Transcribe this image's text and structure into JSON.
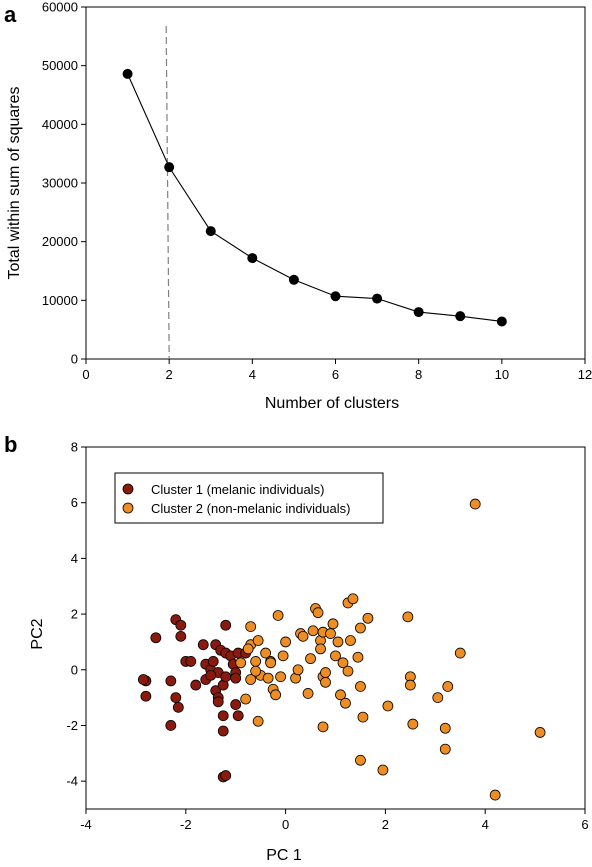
{
  "chart_data": [
    {
      "type": "line",
      "panel_label": "a",
      "xlabel": "Number of clusters",
      "ylabel": "Total within sum of squares",
      "xlim": [
        0,
        12
      ],
      "ylim": [
        0,
        60000
      ],
      "xticks": [
        0,
        2,
        4,
        6,
        8,
        10,
        12
      ],
      "yticks": [
        0,
        10000,
        20000,
        30000,
        40000,
        50000,
        60000
      ],
      "x": [
        1,
        2,
        3,
        4,
        5,
        6,
        7,
        8,
        9,
        10
      ],
      "y": [
        48600,
        32700,
        21800,
        17200,
        13500,
        10700,
        10300,
        8000,
        7300,
        6400
      ],
      "reference_line": {
        "orientation": "vertical",
        "x": 2,
        "style": "dashed",
        "color": "#808080"
      },
      "grid": false,
      "series_color": "#000000"
    },
    {
      "type": "scatter",
      "panel_label": "b",
      "xlabel": "PC 1",
      "ylabel": "PC2",
      "xlim": [
        -4,
        6
      ],
      "ylim": [
        -5,
        8
      ],
      "xticks": [
        -4,
        -2,
        0,
        2,
        4,
        6
      ],
      "yticks": [
        -4,
        -2,
        0,
        2,
        4,
        6,
        8
      ],
      "legend_position": "top-left",
      "grid": false,
      "series": [
        {
          "name": "Cluster 1 (melanic individuals)",
          "color": "#8b1a0e",
          "points": [
            [
              -2.2,
              1.8
            ],
            [
              -2.1,
              1.6
            ],
            [
              -2.1,
              1.2
            ],
            [
              -2.6,
              1.15
            ],
            [
              -2.0,
              0.3
            ],
            [
              -1.9,
              0.3
            ],
            [
              -1.65,
              0.9
            ],
            [
              -1.4,
              0.9
            ],
            [
              -1.2,
              1.6
            ],
            [
              -1.3,
              0.7
            ],
            [
              -1.6,
              0.2
            ],
            [
              -1.5,
              0.0
            ],
            [
              -1.45,
              0.3
            ],
            [
              -1.35,
              -0.1
            ],
            [
              -1.2,
              0.6
            ],
            [
              -1.1,
              0.5
            ],
            [
              -1.05,
              0.2
            ],
            [
              -0.95,
              0.6
            ],
            [
              -0.8,
              0.6
            ],
            [
              -1.8,
              -0.55
            ],
            [
              -2.2,
              -1.0
            ],
            [
              -2.15,
              -1.35
            ],
            [
              -2.8,
              -0.4
            ],
            [
              -2.85,
              -0.35
            ],
            [
              -2.8,
              -0.95
            ],
            [
              -2.3,
              -0.4
            ],
            [
              -2.3,
              -2.0
            ],
            [
              -1.6,
              -0.35
            ],
            [
              -1.4,
              -0.75
            ],
            [
              -1.35,
              -1.0
            ],
            [
              -1.35,
              -1.15
            ],
            [
              -1.25,
              -0.55
            ],
            [
              -1.2,
              -0.25
            ],
            [
              -1.0,
              -0.1
            ],
            [
              -1.25,
              -1.65
            ],
            [
              -1.25,
              -2.2
            ],
            [
              -1.0,
              -1.25
            ],
            [
              -0.95,
              -1.65
            ],
            [
              -1.25,
              -3.85
            ],
            [
              -1.2,
              -3.8
            ],
            [
              -1.5,
              -0.2
            ],
            [
              -1.0,
              -0.3
            ]
          ]
        },
        {
          "name": "Cluster 2 (non-melanic individuals)",
          "color": "#ee8e22",
          "points": [
            [
              -0.7,
              0.9
            ],
            [
              -0.75,
              0.75
            ],
            [
              -0.6,
              0.3
            ],
            [
              -0.55,
              1.05
            ],
            [
              -0.5,
              -0.2
            ],
            [
              -0.4,
              0.6
            ],
            [
              -0.35,
              -0.3
            ],
            [
              -0.3,
              0.3
            ],
            [
              -0.25,
              -0.7
            ],
            [
              -0.2,
              -0.9
            ],
            [
              -0.1,
              -0.25
            ],
            [
              -0.05,
              0.5
            ],
            [
              0.0,
              1.0
            ],
            [
              -0.7,
              1.55
            ],
            [
              -0.55,
              -1.85
            ],
            [
              -0.8,
              -1.05
            ],
            [
              -0.7,
              -0.35
            ],
            [
              -0.9,
              0.25
            ],
            [
              -0.6,
              -0.05
            ],
            [
              -0.15,
              1.95
            ],
            [
              0.2,
              -0.3
            ],
            [
              0.3,
              1.3
            ],
            [
              0.35,
              1.2
            ],
            [
              0.45,
              -0.85
            ],
            [
              0.5,
              0.4
            ],
            [
              0.55,
              1.4
            ],
            [
              0.6,
              2.2
            ],
            [
              0.65,
              2.05
            ],
            [
              0.7,
              1.05
            ],
            [
              0.75,
              1.35
            ],
            [
              0.7,
              0.75
            ],
            [
              0.75,
              -0.25
            ],
            [
              0.8,
              -0.45
            ],
            [
              0.8,
              -0.1
            ],
            [
              0.75,
              -2.05
            ],
            [
              0.95,
              1.65
            ],
            [
              1.0,
              0.5
            ],
            [
              1.05,
              1.0
            ],
            [
              1.1,
              -0.9
            ],
            [
              1.15,
              0.25
            ],
            [
              1.2,
              -1.2
            ],
            [
              1.25,
              -0.05
            ],
            [
              1.25,
              2.4
            ],
            [
              1.3,
              1.05
            ],
            [
              1.35,
              2.55
            ],
            [
              1.45,
              0.45
            ],
            [
              1.5,
              -0.6
            ],
            [
              1.5,
              1.5
            ],
            [
              1.55,
              -1.7
            ],
            [
              1.5,
              -3.25
            ],
            [
              1.65,
              1.85
            ],
            [
              1.95,
              -3.6
            ],
            [
              2.05,
              -1.3
            ],
            [
              2.45,
              1.9
            ],
            [
              2.5,
              -0.25
            ],
            [
              2.5,
              -0.55
            ],
            [
              2.55,
              -1.95
            ],
            [
              3.05,
              -1.0
            ],
            [
              3.2,
              -2.1
            ],
            [
              3.25,
              -0.6
            ],
            [
              3.2,
              -2.85
            ],
            [
              3.5,
              0.6
            ],
            [
              3.8,
              5.95
            ],
            [
              4.2,
              -4.5
            ],
            [
              5.1,
              -2.25
            ],
            [
              0.25,
              0.0
            ],
            [
              -0.3,
              0.25
            ],
            [
              0.9,
              1.3
            ]
          ]
        }
      ]
    }
  ]
}
